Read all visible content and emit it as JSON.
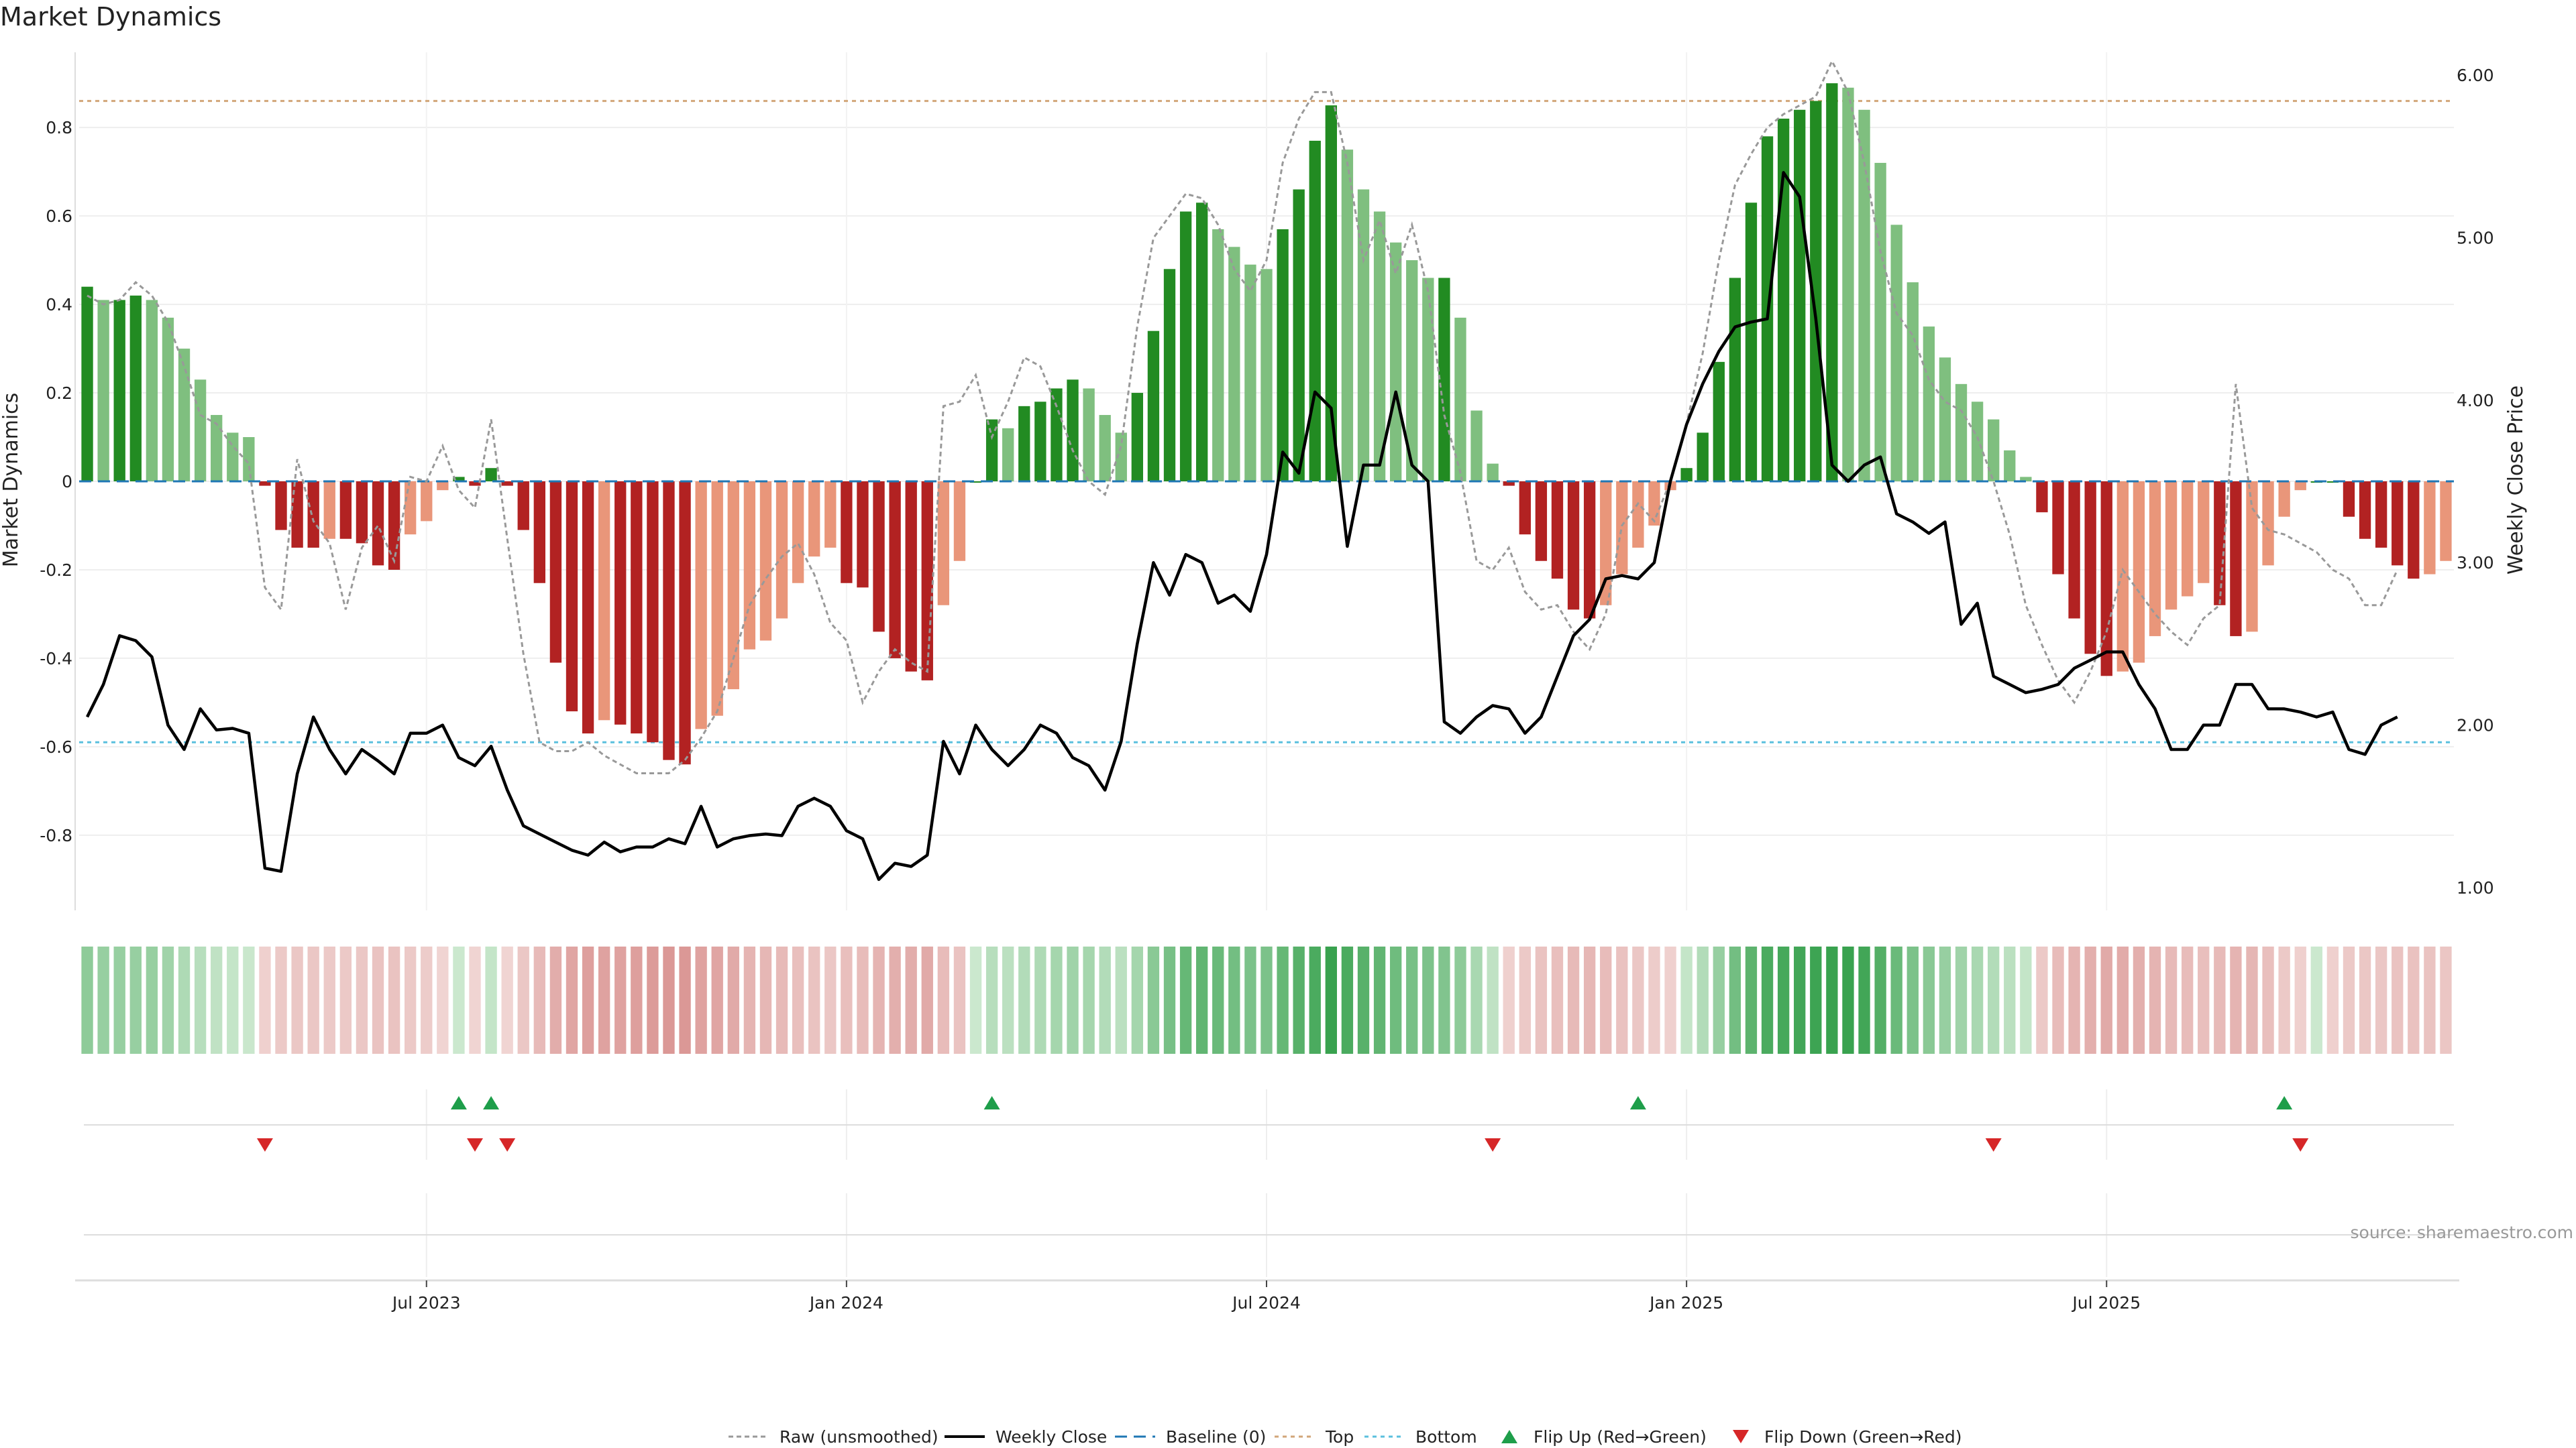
{
  "chart_data": {
    "type": "bar",
    "title": "Market Dynamics",
    "ylabel_left": "Market Dynamics",
    "ylabel_right": "Weekly Close Price",
    "source": "source: sharemaestro.com",
    "ylim_left": [
      -0.97,
      0.97
    ],
    "ylim_right": [
      0.86,
      6.14
    ],
    "yticks_left": [
      "-0.8",
      "-0.6",
      "-0.4",
      "-0.2",
      "0",
      "0.2",
      "0.4",
      "0.6",
      "0.8"
    ],
    "yticks_right": [
      "1.00",
      "2.00",
      "3.00",
      "4.00",
      "5.00",
      "6.00"
    ],
    "x_ticks": [
      {
        "label": "Jul 2023",
        "week": 21
      },
      {
        "label": "Jan 2024",
        "week": 47
      },
      {
        "label": "Jul 2024",
        "week": 73
      },
      {
        "label": "Jan 2025",
        "week": 99
      },
      {
        "label": "Jul 2025",
        "week": 125
      }
    ],
    "top_level": 0.86,
    "bottom_level": -0.59,
    "legend": [
      "Raw (unsmoothed)",
      "Weekly Close",
      "Baseline (0)",
      "Top",
      "Bottom",
      "Flip Up (Red→Green)",
      "Flip Down (Green→Red)"
    ],
    "colors": {
      "strong_green": "#228b22",
      "light_green": "#7fbf7f",
      "strong_red": "#b22222",
      "light_red": "#e9967a",
      "baseline": "#1f77b4",
      "top": "#d2a679",
      "bottom": "#5bc0de",
      "raw": "#999999",
      "close": "#000000",
      "flip_up": "#1e9e4a",
      "flip_down": "#d62728"
    },
    "series": [
      {
        "name": "Market Dynamics (smoothed)",
        "values": [
          0.44,
          0.41,
          0.41,
          0.42,
          0.41,
          0.37,
          0.3,
          0.23,
          0.15,
          0.11,
          0.1,
          -0.01,
          -0.11,
          -0.15,
          -0.15,
          -0.13,
          -0.13,
          -0.14,
          -0.19,
          -0.2,
          -0.12,
          -0.09,
          -0.02,
          0.01,
          -0.01,
          0.03,
          -0.01,
          -0.11,
          -0.23,
          -0.41,
          -0.52,
          -0.57,
          -0.54,
          -0.55,
          -0.57,
          -0.59,
          -0.63,
          -0.64,
          -0.56,
          -0.53,
          -0.47,
          -0.38,
          -0.36,
          -0.31,
          -0.23,
          -0.17,
          -0.15,
          -0.23,
          -0.24,
          -0.34,
          -0.4,
          -0.43,
          -0.45,
          -0.28,
          -0.18,
          0.0,
          0.14,
          0.12,
          0.17,
          0.18,
          0.21,
          0.23,
          0.21,
          0.15,
          0.11,
          0.2,
          0.34,
          0.48,
          0.61,
          0.63,
          0.57,
          0.53,
          0.49,
          0.48,
          0.57,
          0.66,
          0.77,
          0.85,
          0.75,
          0.66,
          0.61,
          0.54,
          0.5,
          0.46,
          0.46,
          0.37,
          0.16,
          0.04,
          -0.01,
          -0.12,
          -0.18,
          -0.22,
          -0.29,
          -0.31,
          -0.28,
          -0.21,
          -0.15,
          -0.1,
          -0.02,
          0.03,
          0.11,
          0.27,
          0.46,
          0.63,
          0.78,
          0.82,
          0.84,
          0.86,
          0.9,
          0.89,
          0.84,
          0.72,
          0.58,
          0.45,
          0.35,
          0.28,
          0.22,
          0.18,
          0.14,
          0.07,
          0.01,
          -0.07,
          -0.21,
          -0.31,
          -0.39,
          -0.44,
          -0.43,
          -0.41,
          -0.35,
          -0.29,
          -0.26,
          -0.23,
          -0.28,
          -0.35,
          -0.34,
          -0.19,
          -0.08,
          -0.02,
          0.0,
          0.0,
          -0.08,
          -0.13,
          -0.15,
          -0.19,
          -0.22,
          -0.21,
          -0.18
        ]
      },
      {
        "name": "Raw (unsmoothed)",
        "values": [
          0.42,
          0.4,
          0.41,
          0.45,
          0.42,
          0.36,
          0.26,
          0.15,
          0.13,
          0.08,
          0.04,
          -0.24,
          -0.29,
          0.05,
          -0.09,
          -0.14,
          -0.29,
          -0.15,
          -0.1,
          -0.18,
          0.01,
          0.0,
          0.08,
          -0.02,
          -0.06,
          0.14,
          -0.13,
          -0.39,
          -0.59,
          -0.61,
          -0.61,
          -0.59,
          -0.62,
          -0.64,
          -0.66,
          -0.66,
          -0.66,
          -0.63,
          -0.58,
          -0.52,
          -0.4,
          -0.28,
          -0.22,
          -0.17,
          -0.14,
          -0.21,
          -0.32,
          -0.36,
          -0.5,
          -0.43,
          -0.38,
          -0.41,
          -0.43,
          0.17,
          0.18,
          0.24,
          0.1,
          0.18,
          0.28,
          0.26,
          0.17,
          0.07,
          0.0,
          -0.03,
          0.08,
          0.35,
          0.55,
          0.6,
          0.65,
          0.64,
          0.58,
          0.48,
          0.43,
          0.5,
          0.72,
          0.82,
          0.88,
          0.88,
          0.72,
          0.5,
          0.59,
          0.47,
          0.58,
          0.43,
          0.15,
          0.02,
          -0.18,
          -0.2,
          -0.15,
          -0.25,
          -0.29,
          -0.28,
          -0.34,
          -0.38,
          -0.3,
          -0.1,
          -0.05,
          -0.09,
          0.0,
          0.13,
          0.29,
          0.5,
          0.67,
          0.74,
          0.8,
          0.83,
          0.85,
          0.87,
          0.95,
          0.88,
          0.72,
          0.52,
          0.38,
          0.33,
          0.23,
          0.18,
          0.16,
          0.1,
          0.0,
          -0.12,
          -0.28,
          -0.37,
          -0.45,
          -0.5,
          -0.43,
          -0.34,
          -0.2,
          -0.25,
          -0.3,
          -0.34,
          -0.37,
          -0.31,
          -0.28,
          0.22,
          -0.06,
          -0.11,
          -0.12,
          -0.14,
          -0.16,
          -0.2,
          -0.22,
          -0.28,
          -0.28,
          -0.2
        ]
      },
      {
        "name": "Weekly Close",
        "values": [
          2.05,
          2.25,
          2.55,
          2.52,
          2.42,
          2.0,
          1.85,
          2.1,
          1.97,
          1.98,
          1.95,
          1.12,
          1.1,
          1.7,
          2.05,
          1.85,
          1.7,
          1.85,
          1.78,
          1.7,
          1.95,
          1.95,
          2.0,
          1.8,
          1.75,
          1.87,
          1.6,
          1.38,
          1.33,
          1.28,
          1.23,
          1.2,
          1.28,
          1.22,
          1.25,
          1.25,
          1.3,
          1.27,
          1.5,
          1.25,
          1.3,
          1.32,
          1.33,
          1.32,
          1.5,
          1.55,
          1.5,
          1.35,
          1.3,
          1.05,
          1.15,
          1.13,
          1.2,
          1.9,
          1.7,
          2.0,
          1.85,
          1.75,
          1.85,
          2.0,
          1.95,
          1.8,
          1.75,
          1.6,
          1.9,
          2.5,
          3.0,
          2.8,
          3.05,
          3.0,
          2.75,
          2.8,
          2.7,
          3.05,
          3.68,
          3.55,
          4.05,
          3.95,
          3.1,
          3.6,
          3.6,
          4.05,
          3.6,
          3.5,
          2.02,
          1.95,
          2.05,
          2.12,
          2.1,
          1.95,
          2.05,
          2.3,
          2.55,
          2.65,
          2.9,
          2.92,
          2.9,
          3.0,
          3.5,
          3.85,
          4.1,
          4.3,
          4.45,
          4.48,
          4.5,
          5.4,
          5.25,
          4.5,
          3.6,
          3.5,
          3.6,
          3.65,
          3.3,
          3.25,
          3.18,
          3.25,
          2.62,
          2.75,
          2.3,
          2.25,
          2.2,
          2.22,
          2.25,
          2.35,
          2.4,
          2.45,
          2.45,
          2.25,
          2.1,
          1.85,
          1.85,
          2.0,
          2.0,
          2.25,
          2.25,
          2.1,
          2.1,
          2.08,
          2.05,
          2.08,
          1.85,
          1.82,
          2.0,
          2.05
        ]
      }
    ],
    "regime_strip_levels": [
      0.42,
      0.38,
      0.38,
      0.38,
      0.38,
      0.34,
      0.28,
      0.24,
      0.2,
      0.18,
      0.16,
      -0.15,
      -0.2,
      -0.22,
      -0.22,
      -0.2,
      -0.2,
      -0.22,
      -0.25,
      -0.25,
      -0.2,
      -0.18,
      -0.12,
      0.15,
      -0.1,
      0.18,
      -0.12,
      -0.22,
      -0.32,
      -0.42,
      -0.48,
      -0.52,
      -0.5,
      -0.5,
      -0.52,
      -0.55,
      -0.58,
      -0.58,
      -0.5,
      -0.48,
      -0.44,
      -0.36,
      -0.34,
      -0.32,
      -0.28,
      -0.25,
      -0.22,
      -0.28,
      -0.3,
      -0.36,
      -0.4,
      -0.42,
      -0.44,
      -0.3,
      -0.25,
      0.15,
      0.24,
      0.22,
      0.26,
      0.28,
      0.32,
      0.34,
      0.32,
      0.26,
      0.22,
      0.32,
      0.44,
      0.52,
      0.6,
      0.62,
      0.58,
      0.54,
      0.5,
      0.5,
      0.6,
      0.66,
      0.72,
      0.8,
      0.72,
      0.66,
      0.62,
      0.56,
      0.52,
      0.5,
      0.48,
      0.42,
      0.3,
      0.2,
      -0.15,
      -0.2,
      -0.25,
      -0.28,
      -0.32,
      -0.34,
      -0.3,
      -0.26,
      -0.22,
      -0.18,
      -0.15,
      0.18,
      0.26,
      0.38,
      0.54,
      0.64,
      0.72,
      0.74,
      0.76,
      0.78,
      0.8,
      0.8,
      0.76,
      0.68,
      0.58,
      0.5,
      0.44,
      0.38,
      0.34,
      0.3,
      0.26,
      0.22,
      0.18,
      -0.2,
      -0.3,
      -0.36,
      -0.4,
      -0.44,
      -0.43,
      -0.4,
      -0.36,
      -0.32,
      -0.3,
      -0.28,
      -0.32,
      -0.36,
      -0.35,
      -0.28,
      -0.2,
      -0.15,
      0.15,
      -0.15,
      -0.2,
      -0.22,
      -0.22,
      -0.25,
      -0.26,
      -0.25,
      -0.23
    ],
    "flip_up_weeks": [
      23,
      25,
      56,
      96,
      136
    ],
    "flip_down_weeks": [
      11,
      24,
      26,
      87,
      118,
      137
    ]
  }
}
